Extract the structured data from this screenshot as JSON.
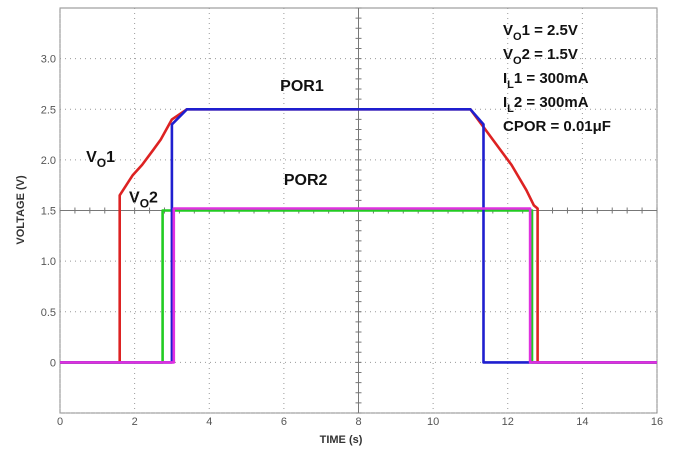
{
  "chart_data": {
    "type": "line",
    "xlabel": "TIME (s)",
    "ylabel": "VOLTAGE (V)",
    "xlim": [
      0,
      16
    ],
    "ylim": [
      -0.5,
      3.5
    ],
    "xticks": [
      "0",
      "2",
      "4",
      "6",
      "8",
      "10",
      "12",
      "14",
      "16"
    ],
    "yticks": [
      "0",
      "0.5",
      "1.0",
      "1.5",
      "2.0",
      "2.5",
      "3.0"
    ],
    "grid": true,
    "series": [
      {
        "name": "VO1",
        "color": "#dd2222",
        "x": [
          0,
          1.6,
          1.6,
          1.95,
          2.2,
          2.5,
          2.7,
          3.0,
          3.4,
          11.0,
          11.6,
          12.1,
          12.5,
          12.7,
          12.8,
          12.8,
          16
        ],
        "y": [
          0,
          0,
          1.65,
          1.85,
          1.95,
          2.1,
          2.2,
          2.4,
          2.5,
          2.5,
          2.2,
          1.95,
          1.7,
          1.55,
          1.52,
          0,
          0
        ]
      },
      {
        "name": "VO2",
        "color": "#22cc22",
        "x": [
          0,
          2.75,
          2.75,
          12.65,
          12.65,
          16
        ],
        "y": [
          0,
          0,
          1.5,
          1.5,
          0,
          0
        ]
      },
      {
        "name": "POR1",
        "color": "#1f1fcf",
        "x": [
          0,
          3.0,
          3.0,
          3.4,
          11.0,
          11.35,
          11.35,
          16
        ],
        "y": [
          0,
          0,
          2.35,
          2.5,
          2.5,
          2.35,
          0,
          0
        ]
      },
      {
        "name": "POR2",
        "color": "#e030e0",
        "x": [
          0,
          3.05,
          3.05,
          12.6,
          12.6,
          16
        ],
        "y": [
          0,
          0,
          1.52,
          1.52,
          0,
          0
        ]
      }
    ],
    "annotations": [
      {
        "text": "POR1",
        "x": 5.9,
        "y": 2.68
      },
      {
        "text": "POR2",
        "x": 6.0,
        "y": 1.75
      },
      {
        "text": "VO1",
        "x": 0.7,
        "y": 1.98,
        "main": "V",
        "sub": "O",
        "tail": "1"
      },
      {
        "text": "VO2",
        "x": 1.85,
        "y": 1.58,
        "main": "V",
        "sub": "O",
        "tail": "2"
      }
    ],
    "conditions": [
      {
        "text": "VO1 = 2.5V",
        "main": "V",
        "sub": "O",
        "tail": "1 = 2.5V"
      },
      {
        "text": "VO2 = 1.5V",
        "main": "V",
        "sub": "O",
        "tail": "2 = 1.5V"
      },
      {
        "text": "IL1 = 300mA",
        "main": "I",
        "sub": "L",
        "tail": "1 = 300mA"
      },
      {
        "text": "IL2 = 300mA",
        "main": "I",
        "sub": "L",
        "tail": "2 = 300mA"
      },
      {
        "text": "CPOR = 0.01μF",
        "main": "CPOR = 0.01μF",
        "sub": "",
        "tail": ""
      }
    ]
  }
}
